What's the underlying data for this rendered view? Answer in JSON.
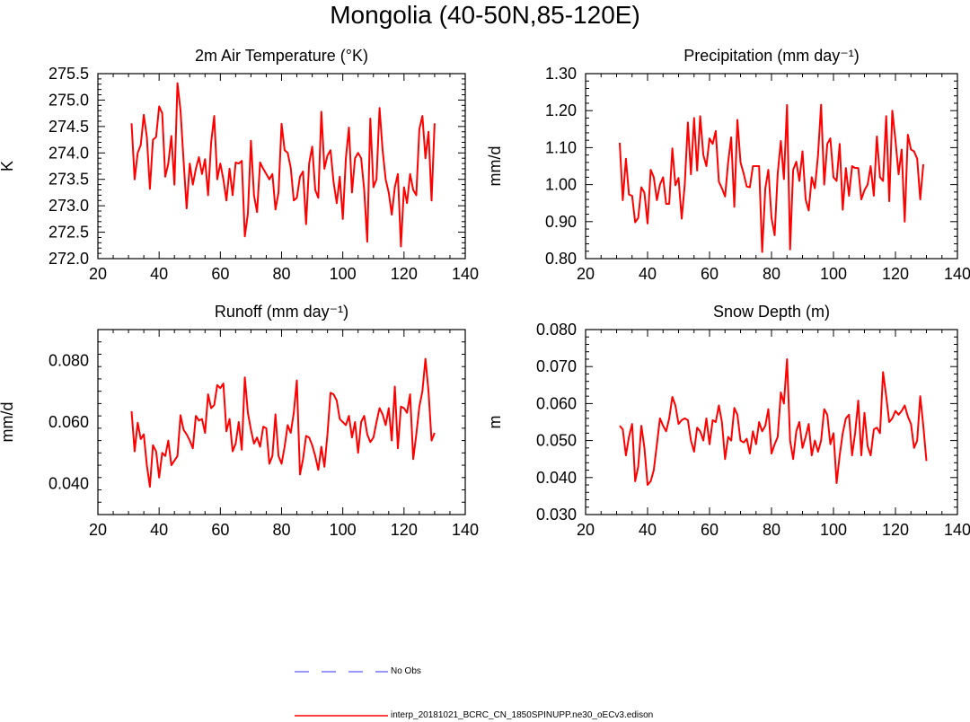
{
  "page": {
    "title": "Mongolia (40-50N,85-120E)"
  },
  "legend": {
    "items": [
      {
        "label": "No Obs",
        "color": "#7777ff",
        "style": "dashed"
      },
      {
        "label": "interp_20181021_BCRC_CN_1850SPINUPP.ne30_oECv3.edison",
        "color": "#ff0000",
        "style": "solid"
      }
    ]
  },
  "chart_data": [
    {
      "type": "line",
      "title": "2m Air Temperature (°K)",
      "ylabel": "K",
      "xlim": [
        20,
        140
      ],
      "ylim": [
        272.0,
        275.5
      ],
      "xticks": [
        20,
        40,
        60,
        80,
        100,
        120,
        140
      ],
      "yticks": [
        272.0,
        272.5,
        273.0,
        273.5,
        274.0,
        274.5,
        275.0,
        275.5
      ],
      "ytick_labels": [
        "272.0",
        "272.5",
        "273.0",
        "273.5",
        "274.0",
        "274.5",
        "275.0",
        "275.5"
      ],
      "series": [
        {
          "name": "interp_20181021_BCRC_CN_1850SPINUPP.ne30_oECv3.edison",
          "color": "#ff0000",
          "x_start": 31,
          "x_step": 1,
          "values": [
            274.56,
            273.5,
            274.0,
            274.15,
            274.72,
            274.3,
            273.32,
            274.25,
            274.3,
            274.88,
            274.75,
            273.55,
            273.8,
            274.32,
            273.4,
            275.32,
            274.8,
            273.85,
            272.95,
            273.8,
            273.4,
            273.7,
            273.92,
            273.6,
            273.88,
            273.2,
            274.2,
            274.7,
            273.5,
            273.8,
            273.5,
            273.1,
            273.7,
            273.2,
            273.82,
            273.8,
            273.85,
            272.42,
            272.85,
            274.23,
            273.2,
            272.88,
            273.82,
            273.7,
            273.6,
            273.5,
            273.6,
            272.93,
            273.25,
            274.55,
            274.05,
            274.0,
            273.72,
            273.1,
            273.15,
            273.55,
            273.65,
            272.65,
            273.8,
            274.12,
            273.3,
            273.15,
            274.78,
            273.7,
            273.95,
            274.05,
            273.45,
            273.05,
            273.55,
            272.75,
            273.9,
            274.48,
            273.25,
            273.9,
            274.0,
            273.9,
            273.3,
            272.32,
            274.65,
            273.35,
            273.5,
            274.85,
            274.05,
            273.5,
            273.25,
            272.83,
            273.35,
            273.6,
            272.23,
            273.35,
            273.05,
            273.6,
            273.3,
            273.2,
            274.45,
            274.7,
            273.9,
            274.4,
            273.1,
            274.56
          ]
        }
      ]
    },
    {
      "type": "line",
      "title": "Precipitation (mm day⁻¹)",
      "ylabel": "mm/d",
      "xlim": [
        20,
        140
      ],
      "ylim": [
        0.8,
        1.3
      ],
      "xticks": [
        20,
        40,
        60,
        80,
        100,
        120,
        140
      ],
      "yticks": [
        0.8,
        0.9,
        1.0,
        1.1,
        1.2,
        1.3
      ],
      "ytick_labels": [
        "0.80",
        "0.90",
        "1.00",
        "1.10",
        "1.20",
        "1.30"
      ],
      "series": [
        {
          "name": "interp_20181021_BCRC_CN_1850SPINUPP.ne30_oECv3.edison",
          "color": "#ff0000",
          "x_start": 31,
          "x_step": 1,
          "values": [
            1.113,
            0.958,
            1.07,
            0.973,
            0.97,
            0.898,
            0.91,
            0.993,
            0.978,
            0.895,
            1.04,
            1.02,
            0.958,
            1.0,
            1.02,
            0.948,
            0.948,
            1.098,
            0.998,
            1.018,
            0.908,
            1.0,
            1.168,
            1.028,
            1.18,
            1.038,
            1.185,
            1.08,
            1.05,
            1.125,
            1.11,
            1.145,
            1.008,
            0.99,
            0.968,
            1.06,
            1.128,
            0.94,
            1.175,
            1.06,
            1.03,
            0.995,
            0.993,
            1.05,
            1.05,
            1.05,
            0.818,
            0.99,
            1.04,
            0.91,
            0.863,
            1.03,
            1.118,
            1.015,
            1.215,
            0.825,
            1.04,
            1.062,
            1.01,
            1.09,
            0.96,
            0.93,
            1.02,
            0.99,
            1.08,
            1.216,
            1.0,
            1.11,
            1.125,
            1.02,
            1.01,
            1.11,
            0.932,
            1.045,
            0.97,
            1.05,
            1.045,
            1.045,
            0.96,
            0.985,
            1.0,
            1.05,
            0.97,
            1.13,
            1.02,
            1.01,
            1.185,
            0.955,
            1.2,
            1.12,
            1.028,
            1.095,
            0.9,
            1.135,
            1.095,
            1.09,
            1.07,
            0.96,
            1.055,
            null
          ]
        }
      ]
    },
    {
      "type": "line",
      "title": "Runoff (mm day⁻¹)",
      "ylabel": "mm/d",
      "xlim": [
        20,
        140
      ],
      "ylim": [
        0.03,
        0.09
      ],
      "xticks": [
        20,
        40,
        60,
        80,
        100,
        120,
        140
      ],
      "yticks": [
        0.04,
        0.06,
        0.08
      ],
      "ytick_labels": [
        "0.040",
        "0.060",
        "0.080"
      ],
      "series": [
        {
          "name": "interp_20181021_BCRC_CN_1850SPINUPP.ne30_oECv3.edison",
          "color": "#ff0000",
          "x_start": 31,
          "x_step": 1,
          "values": [
            0.0635,
            0.0505,
            0.0598,
            0.0545,
            0.056,
            0.046,
            0.039,
            0.0525,
            0.0505,
            0.042,
            0.05,
            0.049,
            0.054,
            0.046,
            0.0475,
            0.049,
            0.0622,
            0.0575,
            0.056,
            0.054,
            0.0515,
            0.062,
            0.0605,
            0.061,
            0.0565,
            0.069,
            0.0645,
            0.0655,
            0.072,
            0.071,
            0.0725,
            0.057,
            0.061,
            0.0505,
            0.053,
            0.06,
            0.051,
            0.0745,
            0.063,
            0.0575,
            0.053,
            0.055,
            0.052,
            0.0585,
            0.058,
            0.0465,
            0.049,
            0.0625,
            0.049,
            0.0465,
            0.052,
            0.059,
            0.0565,
            0.063,
            0.0735,
            0.043,
            0.048,
            0.0555,
            0.055,
            0.0525,
            0.049,
            0.0445,
            0.052,
            0.0455,
            0.056,
            0.0695,
            0.069,
            0.067,
            0.061,
            0.06,
            0.059,
            0.062,
            0.055,
            0.06,
            0.05,
            0.06,
            0.062,
            0.056,
            0.0535,
            0.055,
            0.06,
            0.0645,
            0.0625,
            0.059,
            0.0645,
            0.054,
            0.0715,
            0.0515,
            0.065,
            0.0645,
            0.063,
            0.069,
            0.048,
            0.056,
            0.065,
            0.07,
            0.0805,
            0.07,
            0.054,
            0.0565
          ]
        }
      ]
    },
    {
      "type": "line",
      "title": "Snow Depth (m)",
      "ylabel": "m",
      "xlim": [
        20,
        140
      ],
      "ylim": [
        0.03,
        0.08
      ],
      "xticks": [
        20,
        40,
        60,
        80,
        100,
        120,
        140
      ],
      "yticks": [
        0.03,
        0.04,
        0.05,
        0.06,
        0.07,
        0.08
      ],
      "ytick_labels": [
        "0.030",
        "0.040",
        "0.050",
        "0.060",
        "0.070",
        "0.080"
      ],
      "series": [
        {
          "name": "interp_20181021_BCRC_CN_1850SPINUPP.ne30_oECv3.edison",
          "color": "#ff0000",
          "x_start": 31,
          "x_step": 1,
          "values": [
            0.054,
            0.053,
            0.046,
            0.051,
            0.0545,
            0.039,
            0.043,
            0.054,
            0.048,
            0.038,
            0.039,
            0.042,
            0.049,
            0.056,
            0.054,
            0.0525,
            0.056,
            0.0618,
            0.0595,
            0.0545,
            0.0555,
            0.056,
            0.0555,
            0.05,
            0.047,
            0.0535,
            0.0525,
            0.05,
            0.056,
            0.049,
            0.0555,
            0.055,
            0.0595,
            0.055,
            0.045,
            0.051,
            0.05,
            0.0588,
            0.057,
            0.05,
            0.0495,
            0.0505,
            0.0465,
            0.0525,
            0.049,
            0.055,
            0.0525,
            0.054,
            0.0585,
            0.0465,
            0.049,
            0.051,
            0.063,
            0.06,
            0.072,
            0.05,
            0.045,
            0.0525,
            0.055,
            0.048,
            0.051,
            0.0545,
            0.046,
            0.05,
            0.047,
            0.05,
            0.0585,
            0.057,
            0.049,
            0.052,
            0.0385,
            0.046,
            0.052,
            0.056,
            0.057,
            0.046,
            0.052,
            0.0608,
            0.046,
            0.0575,
            0.0485,
            0.046,
            0.053,
            0.0535,
            0.052,
            0.0685,
            0.062,
            0.055,
            0.056,
            0.058,
            0.057,
            0.058,
            0.0595,
            0.0565,
            0.0545,
            0.048,
            0.05,
            0.062,
            0.054,
            0.0445
          ]
        }
      ]
    }
  ]
}
